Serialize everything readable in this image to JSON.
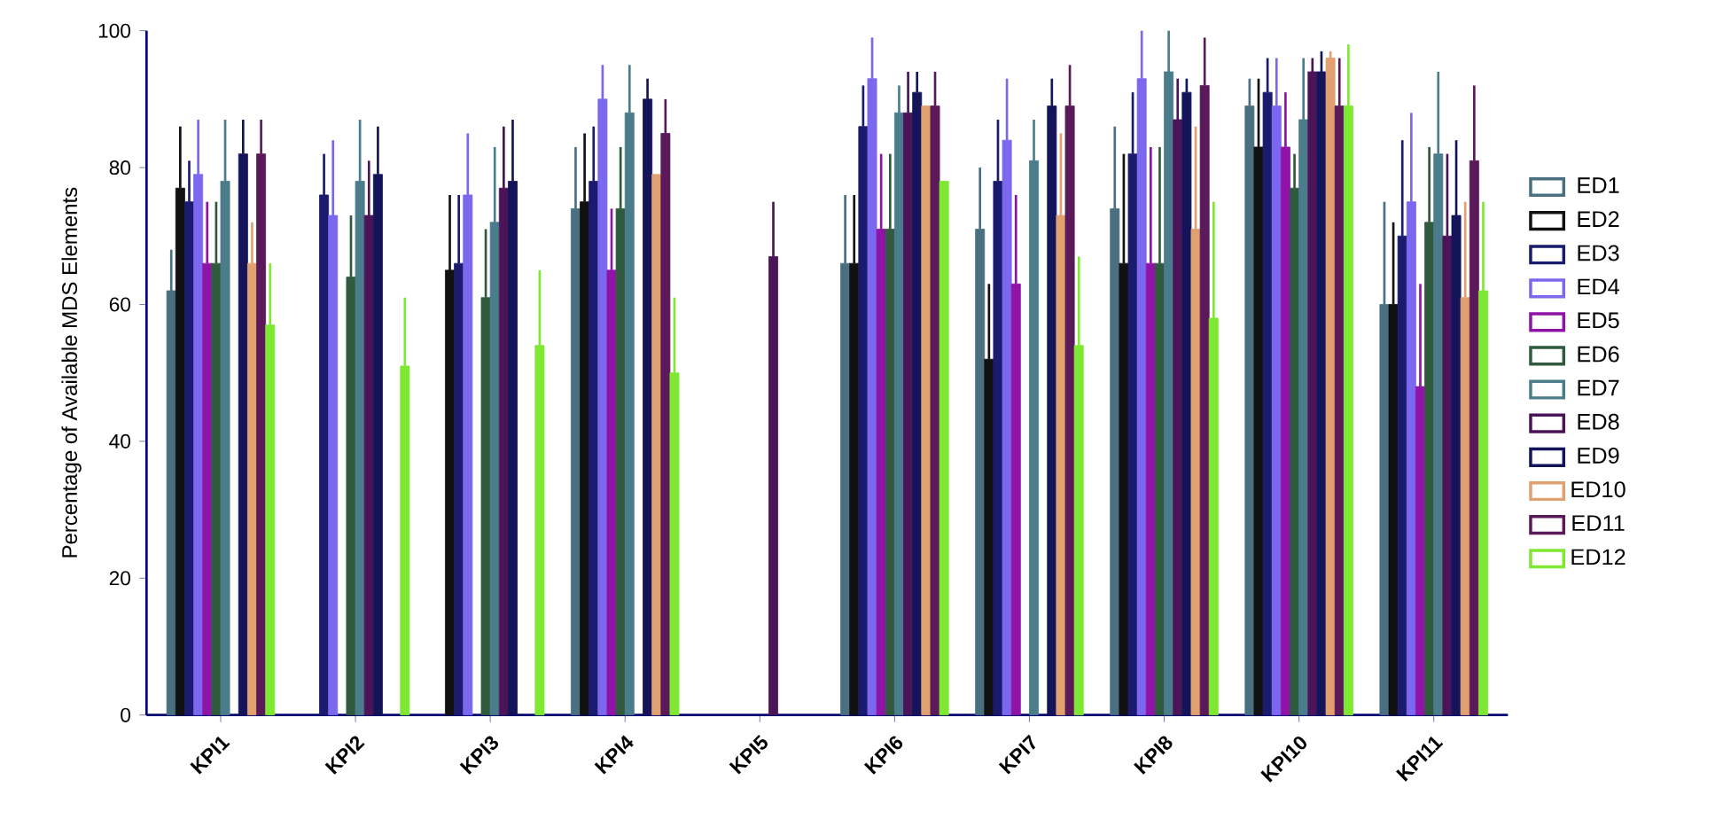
{
  "chart_data": {
    "type": "bar",
    "ylabel": "Percentage of Available MDS Elements",
    "categories": [
      "KPI1",
      "KPI2",
      "KPI3",
      "KPI4",
      "KPI5",
      "KPI6",
      "KPI7",
      "KPI8",
      "KPI10",
      "KPI11"
    ],
    "ylim": [
      0,
      100
    ],
    "yticks": [
      0,
      20,
      40,
      60,
      80,
      100
    ],
    "grid": false,
    "legend": "right",
    "series": [
      {
        "name": "ED1",
        "color": "#4a6f80",
        "values": [
          62,
          null,
          null,
          74,
          null,
          66,
          71,
          74,
          89,
          60
        ],
        "errors": [
          [
            62,
            68
          ],
          null,
          null,
          [
            74,
            83
          ],
          null,
          [
            66,
            76
          ],
          [
            71,
            80
          ],
          [
            74,
            86
          ],
          [
            89,
            93
          ],
          [
            60,
            75
          ]
        ]
      },
      {
        "name": "ED2",
        "color": "#111111",
        "values": [
          77,
          null,
          65,
          75,
          null,
          66,
          52,
          66,
          83,
          60
        ],
        "errors": [
          [
            77,
            86
          ],
          null,
          [
            65,
            76
          ],
          [
            75,
            85
          ],
          null,
          [
            66,
            76
          ],
          [
            52,
            63
          ],
          [
            66,
            82
          ],
          [
            83,
            93
          ],
          [
            60,
            72
          ]
        ]
      },
      {
        "name": "ED3",
        "color": "#1a1a6e",
        "values": [
          75,
          76,
          66,
          78,
          null,
          86,
          78,
          82,
          91,
          70
        ],
        "errors": [
          [
            75,
            81
          ],
          [
            76,
            82
          ],
          [
            66,
            76
          ],
          [
            78,
            86
          ],
          null,
          [
            86,
            92
          ],
          [
            78,
            87
          ],
          [
            82,
            91
          ],
          [
            91,
            96
          ],
          [
            70,
            84
          ]
        ]
      },
      {
        "name": "ED4",
        "color": "#7b68ee",
        "values": [
          79,
          73,
          76,
          90,
          null,
          93,
          84,
          93,
          89,
          75
        ],
        "errors": [
          [
            79,
            87
          ],
          [
            73,
            84
          ],
          [
            76,
            85
          ],
          [
            90,
            95
          ],
          null,
          [
            93,
            99
          ],
          [
            84,
            93
          ],
          [
            93,
            100
          ],
          [
            89,
            96
          ],
          [
            75,
            88
          ]
        ]
      },
      {
        "name": "ED5",
        "color": "#9013a8",
        "values": [
          66,
          null,
          null,
          65,
          null,
          71,
          63,
          66,
          83,
          48
        ],
        "errors": [
          [
            66,
            75
          ],
          null,
          null,
          [
            65,
            74
          ],
          null,
          [
            71,
            82
          ],
          [
            63,
            76
          ],
          [
            66,
            83
          ],
          [
            83,
            91
          ],
          [
            48,
            63
          ]
        ]
      },
      {
        "name": "ED6",
        "color": "#2f5a3e",
        "values": [
          66,
          64,
          61,
          74,
          null,
          71,
          null,
          66,
          77,
          72
        ],
        "errors": [
          [
            66,
            75
          ],
          [
            64,
            73
          ],
          [
            61,
            71
          ],
          [
            74,
            83
          ],
          null,
          [
            71,
            82
          ],
          null,
          [
            66,
            83
          ],
          [
            77,
            82
          ],
          [
            72,
            83
          ]
        ]
      },
      {
        "name": "ED7",
        "color": "#4a7c8c",
        "values": [
          78,
          78,
          72,
          88,
          null,
          88,
          81,
          94,
          87,
          82
        ],
        "errors": [
          [
            78,
            87
          ],
          [
            78,
            87
          ],
          [
            72,
            83
          ],
          [
            88,
            95
          ],
          null,
          [
            88,
            92
          ],
          [
            81,
            87
          ],
          [
            94,
            100
          ],
          [
            87,
            96
          ],
          [
            82,
            94
          ]
        ]
      },
      {
        "name": "ED8",
        "color": "#4b1458",
        "values": [
          null,
          73,
          77,
          null,
          67,
          88,
          null,
          87,
          94,
          70
        ],
        "errors": [
          null,
          [
            73,
            81
          ],
          [
            77,
            86
          ],
          null,
          [
            67,
            75
          ],
          [
            88,
            94
          ],
          null,
          [
            87,
            93
          ],
          [
            94,
            96
          ],
          [
            70,
            82
          ]
        ]
      },
      {
        "name": "ED9",
        "color": "#14145a",
        "values": [
          82,
          79,
          78,
          90,
          null,
          91,
          89,
          91,
          94,
          73
        ],
        "errors": [
          [
            82,
            87
          ],
          [
            79,
            86
          ],
          [
            78,
            87
          ],
          [
            90,
            93
          ],
          null,
          [
            91,
            94
          ],
          [
            89,
            93
          ],
          [
            91,
            93
          ],
          [
            94,
            97
          ],
          [
            73,
            84
          ]
        ]
      },
      {
        "name": "ED10",
        "color": "#e0a070",
        "values": [
          66,
          null,
          null,
          79,
          null,
          89,
          73,
          71,
          96,
          61
        ],
        "errors": [
          [
            66,
            72
          ],
          null,
          null,
          null,
          null,
          null,
          [
            73,
            85
          ],
          [
            71,
            86
          ],
          [
            96,
            97
          ],
          [
            61,
            75
          ]
        ]
      },
      {
        "name": "ED11",
        "color": "#5a1a5a",
        "values": [
          82,
          null,
          null,
          85,
          null,
          89,
          89,
          92,
          89,
          81
        ],
        "errors": [
          [
            82,
            87
          ],
          null,
          null,
          [
            85,
            90
          ],
          null,
          [
            89,
            94
          ],
          [
            89,
            95
          ],
          [
            92,
            99
          ],
          [
            89,
            96
          ],
          [
            81,
            92
          ]
        ]
      },
      {
        "name": "ED12",
        "color": "#7ee832",
        "values": [
          57,
          51,
          54,
          50,
          null,
          78,
          54,
          58,
          89,
          62
        ],
        "errors": [
          [
            57,
            66
          ],
          [
            51,
            61
          ],
          [
            54,
            65
          ],
          [
            50,
            61
          ],
          null,
          null,
          [
            54,
            67
          ],
          [
            58,
            75
          ],
          [
            89,
            98
          ],
          [
            62,
            75
          ]
        ]
      }
    ]
  }
}
